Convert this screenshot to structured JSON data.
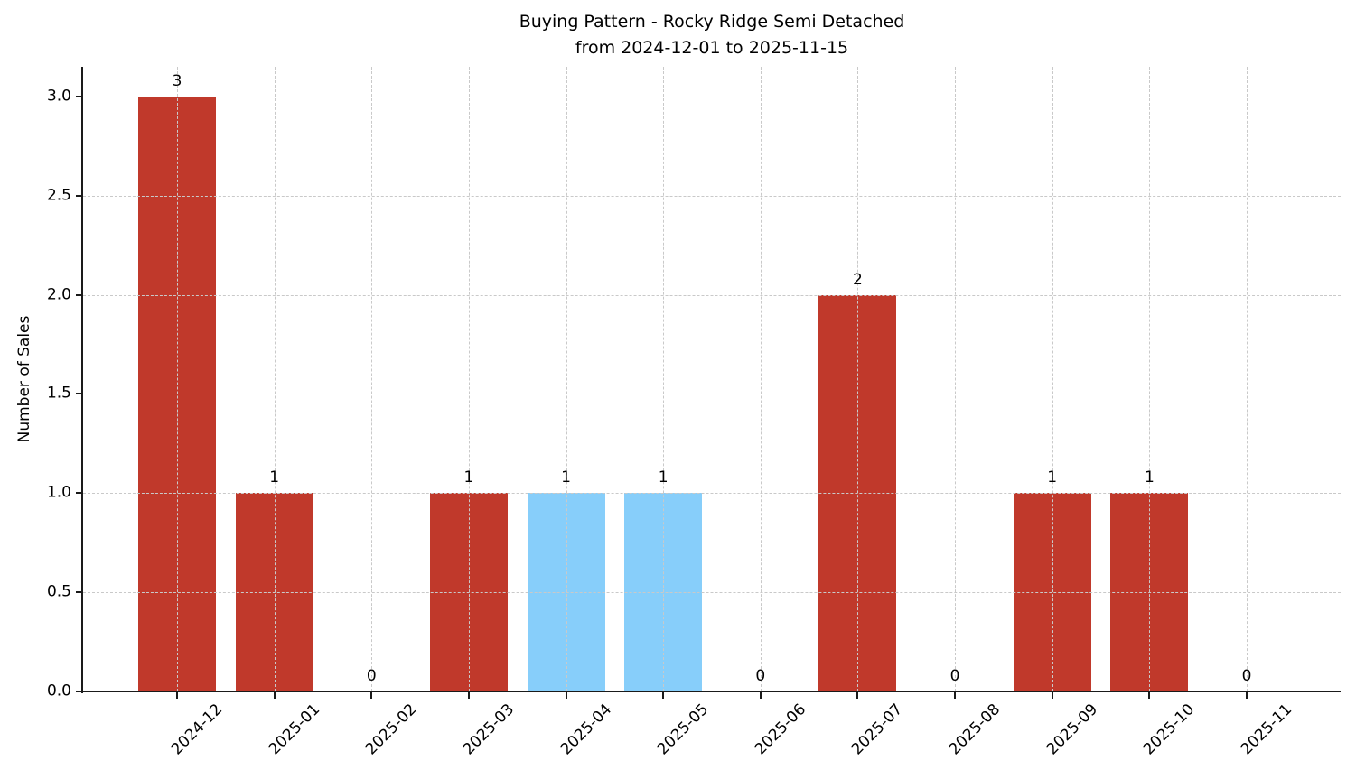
{
  "chart_data": {
    "type": "bar",
    "title": "Buying Pattern - Rocky Ridge Semi Detached",
    "subtitle": "from 2024-12-01 to 2025-11-15",
    "xlabel": "",
    "ylabel": "Number of Sales",
    "categories": [
      "2024-12",
      "2025-01",
      "2025-02",
      "2025-03",
      "2025-04",
      "2025-05",
      "2025-06",
      "2025-07",
      "2025-08",
      "2025-09",
      "2025-10",
      "2025-11"
    ],
    "values": [
      3,
      1,
      0,
      1,
      1,
      1,
      0,
      2,
      0,
      1,
      1,
      0
    ],
    "value_labels": [
      "3",
      "1",
      "0",
      "1",
      "1",
      "1",
      "0",
      "2",
      "0",
      "1",
      "1",
      "0"
    ],
    "bar_colors": [
      "#c0392b",
      "#c0392b",
      "#c0392b",
      "#c0392b",
      "#87cefa",
      "#87cefa",
      "#c0392b",
      "#c0392b",
      "#c0392b",
      "#c0392b",
      "#c0392b",
      "#c0392b"
    ],
    "yticks": [
      0,
      0.5,
      1,
      1.5,
      2,
      2.5,
      3
    ],
    "ytick_labels": [
      "0.0",
      "0.5",
      "1.0",
      "1.5",
      "2.0",
      "2.5",
      "3.0"
    ],
    "ylim": [
      0,
      3.15
    ],
    "grid": true,
    "legend_position": "none",
    "colors": {
      "red_bar": "#c0392b",
      "blue_bar": "#87cefa",
      "gridline": "#c9c9c9",
      "axis": "#1a1a1a",
      "background": "#ffffff",
      "text": "#000000"
    }
  }
}
